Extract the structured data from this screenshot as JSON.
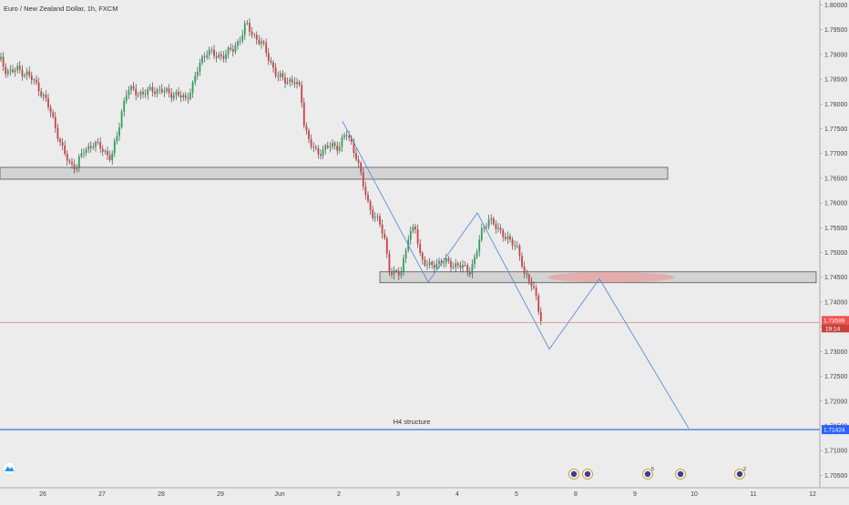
{
  "header": {
    "title": "Euro / New Zealand Dollar, 1h, FXCM"
  },
  "colors": {
    "background": "#ececec",
    "bull": "#26a65b",
    "bear": "#d23f44",
    "wick": "#333333",
    "zone_fill": "#d3d3d3",
    "zone_stroke": "#555555",
    "ellipse_fill": "#e8a0a0",
    "projection_line": "#5b8fd1",
    "support_line": "#3a78d8",
    "current_price_line": "#e57373",
    "current_price_label": "#ef5350",
    "support_label": "#2962ff"
  },
  "chart_data": {
    "type": "candlestick",
    "title": "Euro / New Zealand Dollar, 1h, FXCM",
    "y_range": [
      1.7025,
      1.801
    ],
    "price_ticks": [
      "1.80000",
      "1.79500",
      "1.79000",
      "1.78500",
      "1.78000",
      "1.77500",
      "1.77000",
      "1.76500",
      "1.76000",
      "1.75500",
      "1.75000",
      "1.74500",
      "1.74000",
      "1.73500",
      "1.73000",
      "1.72500",
      "1.72000",
      "1.71500",
      "1.71000",
      "1.70500"
    ],
    "time_ticks": [
      "26",
      "27",
      "28",
      "29",
      "Jun",
      "2",
      "3",
      "4",
      "5",
      "8",
      "9",
      "10",
      "11",
      "12"
    ],
    "candles_anchor_path": [
      [
        0,
        1.789
      ],
      [
        6,
        1.787
      ],
      [
        12,
        1.7865
      ],
      [
        20,
        1.787
      ],
      [
        30,
        1.786
      ],
      [
        42,
        1.7835
      ],
      [
        52,
        1.78
      ],
      [
        60,
        1.776
      ],
      [
        68,
        1.771
      ],
      [
        76,
        1.768
      ],
      [
        84,
        1.7675
      ],
      [
        92,
        1.7705
      ],
      [
        102,
        1.772
      ],
      [
        112,
        1.771
      ],
      [
        122,
        1.769
      ],
      [
        128,
        1.773
      ],
      [
        134,
        1.779
      ],
      [
        140,
        1.783
      ],
      [
        148,
        1.7825
      ],
      [
        158,
        1.782
      ],
      [
        168,
        1.783
      ],
      [
        180,
        1.7825
      ],
      [
        192,
        1.782
      ],
      [
        204,
        1.781
      ],
      [
        212,
        1.784
      ],
      [
        220,
        1.7885
      ],
      [
        228,
        1.791
      ],
      [
        236,
        1.7895
      ],
      [
        246,
        1.79
      ],
      [
        256,
        1.791
      ],
      [
        264,
        1.7935
      ],
      [
        270,
        1.796
      ],
      [
        278,
        1.794
      ],
      [
        288,
        1.792
      ],
      [
        296,
        1.789
      ],
      [
        304,
        1.7855
      ],
      [
        312,
        1.785
      ],
      [
        322,
        1.7845
      ],
      [
        330,
        1.783
      ],
      [
        334,
        1.776
      ],
      [
        340,
        1.772
      ],
      [
        348,
        1.77
      ],
      [
        356,
        1.771
      ],
      [
        364,
        1.7715
      ],
      [
        372,
        1.7715
      ],
      [
        380,
        1.774
      ],
      [
        386,
        1.772
      ],
      [
        392,
        1.769
      ],
      [
        398,
        1.764
      ],
      [
        404,
        1.76
      ],
      [
        410,
        1.7575
      ],
      [
        416,
        1.756
      ],
      [
        422,
        1.753
      ],
      [
        428,
        1.746
      ],
      [
        432,
        1.7455
      ],
      [
        440,
        1.746
      ],
      [
        448,
        1.753
      ],
      [
        456,
        1.755
      ],
      [
        462,
        1.749
      ],
      [
        470,
        1.747
      ],
      [
        480,
        1.748
      ],
      [
        490,
        1.748
      ],
      [
        500,
        1.7475
      ],
      [
        508,
        1.747
      ],
      [
        516,
        1.7465
      ],
      [
        522,
        1.749
      ],
      [
        528,
        1.754
      ],
      [
        536,
        1.757
      ],
      [
        544,
        1.755
      ],
      [
        552,
        1.754
      ],
      [
        560,
        1.752
      ],
      [
        568,
        1.751
      ],
      [
        572,
        1.749
      ],
      [
        576,
        1.745
      ],
      [
        582,
        1.744
      ],
      [
        588,
        1.742
      ],
      [
        594,
        1.736
      ]
    ],
    "zones": [
      {
        "name": "upper-zone",
        "x_start": 0,
        "x_end": 733,
        "y_top": 1.7672,
        "y_bottom": 1.7648
      },
      {
        "name": "lower-zone",
        "x_start": 417,
        "x_end": 896,
        "y_top": 1.7461,
        "y_bottom": 1.7439
      }
    ],
    "projection_path": [
      [
        376,
        1.7765
      ],
      [
        470,
        1.744
      ],
      [
        524,
        1.758
      ],
      [
        603,
        1.7305
      ],
      [
        658,
        1.7447
      ],
      [
        756,
        1.7145
      ]
    ],
    "highlight_ellipse": {
      "cx": 671,
      "cy": 1.745,
      "rx": 70,
      "ry_price": 0.00105
    },
    "support_level": {
      "price": 1.71424,
      "label": "1.71424"
    },
    "current_price": {
      "price": 1.73589,
      "label": "1.73589",
      "countdown": "19:14"
    },
    "annotations": [
      {
        "text": "H4 structure",
        "at_price": 1.715
      }
    ],
    "event_markers": [
      {
        "label": ""
      },
      {
        "label": ""
      },
      {
        "label": "5"
      },
      {
        "label": ""
      },
      {
        "label": "2"
      }
    ]
  }
}
